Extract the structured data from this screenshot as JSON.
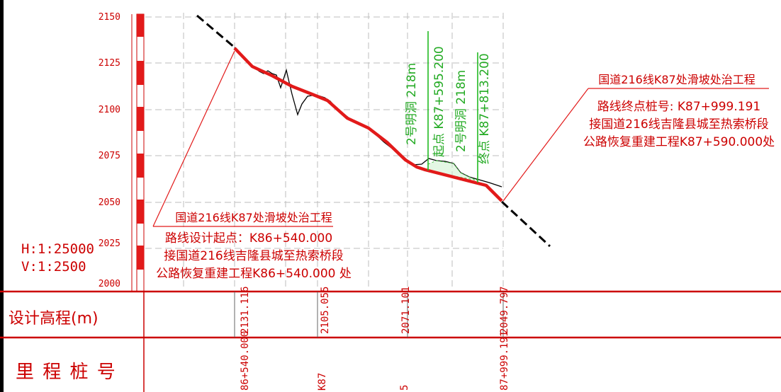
{
  "y_axis": {
    "ticks": [
      "2150",
      "2125",
      "2100",
      "2075",
      "2050",
      "2025",
      "2000"
    ]
  },
  "scale": {
    "horizontal": "H:1:25000",
    "vertical": "V:1:2500"
  },
  "start_note": {
    "line1": "国道216线K87处滑坡处治工程",
    "line2": "路线设计起点：K86+540.000",
    "line3": "接国道216线吉隆县城至热索桥段",
    "line4": "公路恢复重建工程K86+540.000 处"
  },
  "end_note": {
    "line1": "国道216线K87处滑坡处治工程",
    "line2": "路线终点桩号: K87+999.191",
    "line3": "接国道216线吉隆县城至热索桥段",
    "line4": "公路恢复重建工程K87+590.000处"
  },
  "tunnel": {
    "start_name": "2号明洞 218m",
    "start_station": "起点 K87+595.200",
    "end_name": "2号明洞 218m",
    "end_station": "终点 K87+813.200"
  },
  "table": {
    "row1_label": "设计高程(m)",
    "row2_label": "里 程 桩 号",
    "elevations": [
      "2131.116",
      "2105.055",
      "2071.101",
      "2049.797"
    ],
    "stations": [
      "86+540.000",
      "K87",
      "5",
      "87+999.191"
    ]
  },
  "colors": {
    "design_line": "#e21a1a",
    "ground_line": "#000000",
    "tunnel": "#22bb22",
    "grid": "#bdbdbd",
    "frame": "#cc0000"
  }
}
